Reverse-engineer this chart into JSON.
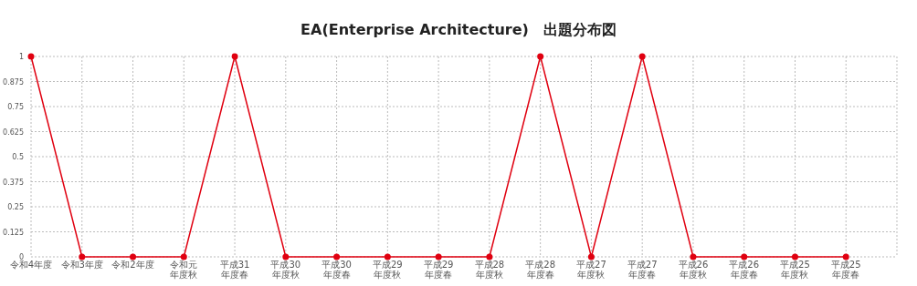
{
  "chart_data": {
    "type": "line",
    "title": "EA(Enterprise Architecture)　出題分布図",
    "categories": [
      "令和4年度",
      "令和3年度",
      "令和2年度",
      "令和元年度秋",
      "平成31年度春",
      "平成30年度秋",
      "平成30年度春",
      "平成29年度秋",
      "平成29年度春",
      "平成28年度秋",
      "平成28年度春",
      "平成27年度秋",
      "平成27年度春",
      "平成26年度秋",
      "平成26年度春",
      "平成25年度秋",
      "平成25年度春"
    ],
    "series": [
      {
        "color": "#e00010",
        "values": [
          1,
          0,
          0,
          0,
          1,
          0,
          0,
          0,
          0,
          0,
          1,
          0,
          1,
          0,
          0,
          0,
          0
        ]
      }
    ],
    "ylim": [
      0,
      1
    ],
    "yticks": [
      0,
      0.125,
      0.25,
      0.375,
      0.5,
      0.625,
      0.75,
      0.875,
      1
    ],
    "grid": true,
    "marker": "circle",
    "line_style": "solid"
  }
}
